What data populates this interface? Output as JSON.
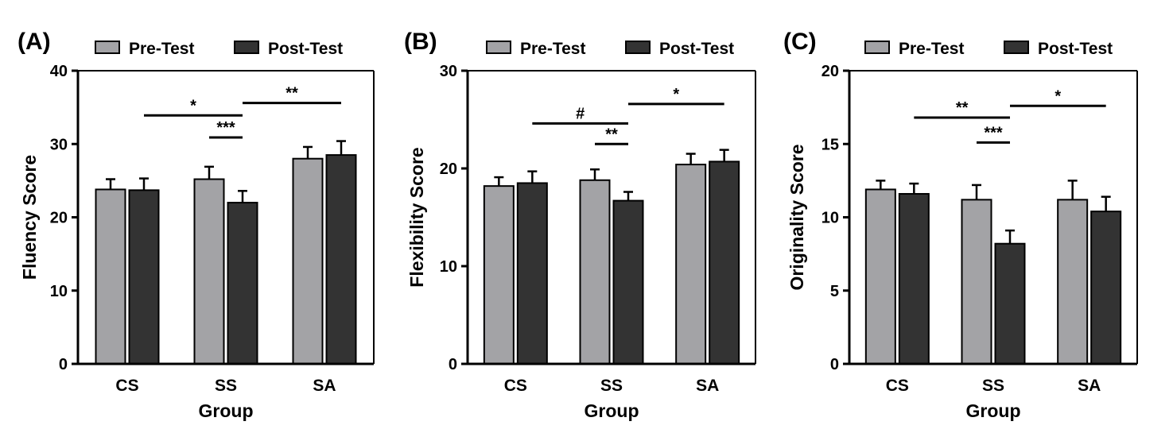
{
  "legend": {
    "pre": "Pre-Test",
    "post": "Post-Test"
  },
  "colors": {
    "pre": "#a3a3a6",
    "post": "#333333",
    "axis": "#000000"
  },
  "chart_data": [
    {
      "type": "bar",
      "panel_label": "(A)",
      "categories": [
        "CS",
        "SS",
        "SA"
      ],
      "xlabel": "Group",
      "ylabel": "Fluency Score",
      "ylim": [
        0,
        40
      ],
      "yticks": [
        0,
        10,
        20,
        30,
        40
      ],
      "series": [
        {
          "name": "Pre-Test",
          "values": [
            23.8,
            25.2,
            28.0
          ],
          "errors": [
            1.4,
            1.7,
            1.6
          ]
        },
        {
          "name": "Post-Test",
          "values": [
            23.7,
            22.0,
            28.5
          ],
          "errors": [
            1.6,
            1.6,
            1.9
          ]
        }
      ],
      "annotations": [
        {
          "text": "*",
          "from": [
            0,
            1
          ],
          "to": [
            1,
            1
          ],
          "y": 33.9
        },
        {
          "text": "***",
          "from": [
            1,
            0
          ],
          "to": [
            1,
            1
          ],
          "y": 30.9
        },
        {
          "text": "**",
          "from": [
            1,
            1
          ],
          "to": [
            2,
            1
          ],
          "y": 35.6
        }
      ]
    },
    {
      "type": "bar",
      "panel_label": "(B)",
      "categories": [
        "CS",
        "SS",
        "SA"
      ],
      "xlabel": "Group",
      "ylabel": "Flexibility Score",
      "ylim": [
        0,
        30
      ],
      "yticks": [
        0,
        10,
        20,
        30
      ],
      "series": [
        {
          "name": "Pre-Test",
          "values": [
            18.2,
            18.8,
            20.4
          ],
          "errors": [
            0.9,
            1.1,
            1.1
          ]
        },
        {
          "name": "Post-Test",
          "values": [
            18.5,
            16.7,
            20.7
          ],
          "errors": [
            1.2,
            0.9,
            1.2
          ]
        }
      ],
      "annotations": [
        {
          "text": "#",
          "from": [
            0,
            1
          ],
          "to": [
            1,
            1
          ],
          "y": 24.6
        },
        {
          "text": "**",
          "from": [
            1,
            0
          ],
          "to": [
            1,
            1
          ],
          "y": 22.5
        },
        {
          "text": "*",
          "from": [
            1,
            1
          ],
          "to": [
            2,
            1
          ],
          "y": 26.6
        }
      ]
    },
    {
      "type": "bar",
      "panel_label": "(C)",
      "categories": [
        "CS",
        "SS",
        "SA"
      ],
      "xlabel": "Group",
      "ylabel": "Originality Score",
      "ylim": [
        0,
        20
      ],
      "yticks": [
        0,
        5,
        10,
        15,
        20
      ],
      "series": [
        {
          "name": "Pre-Test",
          "values": [
            11.9,
            11.2,
            11.2
          ],
          "errors": [
            0.6,
            1.0,
            1.3
          ]
        },
        {
          "name": "Post-Test",
          "values": [
            11.6,
            8.2,
            10.4
          ],
          "errors": [
            0.7,
            0.9,
            1.0
          ]
        }
      ],
      "annotations": [
        {
          "text": "**",
          "from": [
            0,
            1
          ],
          "to": [
            1,
            1
          ],
          "y": 16.8
        },
        {
          "text": "***",
          "from": [
            1,
            0
          ],
          "to": [
            1,
            1
          ],
          "y": 15.1
        },
        {
          "text": "*",
          "from": [
            1,
            1
          ],
          "to": [
            2,
            1
          ],
          "y": 17.6
        }
      ]
    }
  ]
}
